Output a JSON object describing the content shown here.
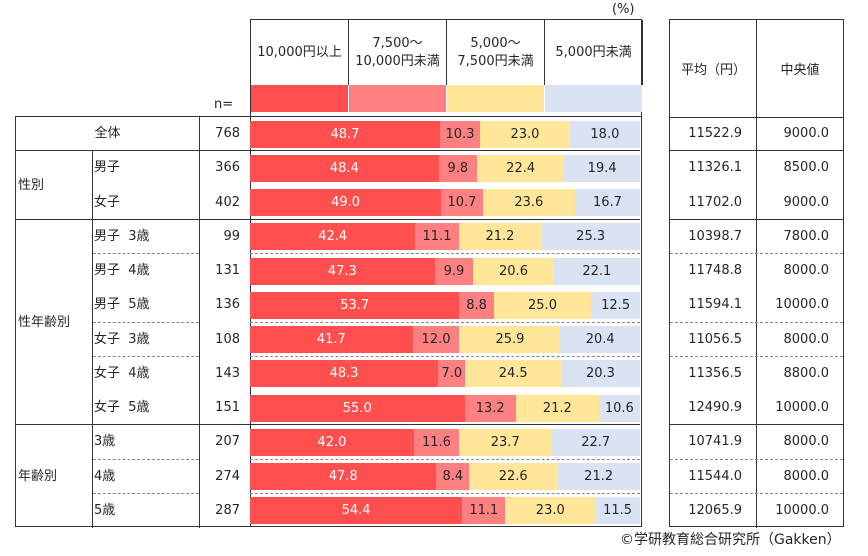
{
  "unit_label": "(%)",
  "n_label": "n=",
  "legend": [
    {
      "label_lines": [
        "10,000円以上"
      ],
      "color": "#FF4F4F"
    },
    {
      "label_lines": [
        "7,500～",
        "10,000円未満"
      ],
      "color": "#FF8080"
    },
    {
      "label_lines": [
        "5,000～",
        "7,500円未満"
      ],
      "color": "#FFE699"
    },
    {
      "label_lines": [
        "5,000円未満"
      ],
      "color": "#DAE3F3"
    }
  ],
  "right_table": {
    "headers": [
      "平均（円）",
      "中央値"
    ]
  },
  "groups": [
    {
      "label": "全体",
      "rows": [
        0
      ]
    },
    {
      "label": "性別",
      "rows": [
        1,
        2
      ]
    },
    {
      "label": "性年齢別",
      "rows": [
        3,
        4,
        5,
        6,
        7,
        8
      ]
    },
    {
      "label": "年齢別",
      "rows": [
        9,
        10,
        11
      ]
    }
  ],
  "chart_data": {
    "type": "bar",
    "orientation": "horizontal-stacked-100",
    "title": "",
    "xlabel": "",
    "ylabel": "",
    "unit": "%",
    "xlim": [
      0,
      100
    ],
    "categories": [
      "全体",
      "男子",
      "女子",
      "男子 3歳",
      "男子 4歳",
      "男子 5歳",
      "女子 3歳",
      "女子 4歳",
      "女子 5歳",
      "3歳",
      "4歳",
      "5歳"
    ],
    "n": [
      768,
      366,
      402,
      99,
      131,
      136,
      108,
      143,
      151,
      207,
      274,
      287
    ],
    "series": [
      {
        "name": "10,000円以上",
        "color": "#FF4F4F",
        "values": [
          48.7,
          48.4,
          49.0,
          42.4,
          47.3,
          53.7,
          41.7,
          48.3,
          55.0,
          42.0,
          47.8,
          54.4
        ]
      },
      {
        "name": "7,500～10,000円未満",
        "color": "#FF8080",
        "values": [
          10.3,
          9.8,
          10.7,
          11.1,
          9.9,
          8.8,
          12.0,
          7.0,
          13.2,
          11.6,
          8.4,
          11.1
        ]
      },
      {
        "name": "5,000～7,500円未満",
        "color": "#FFE699",
        "values": [
          23.0,
          22.4,
          23.6,
          21.2,
          20.6,
          25.0,
          25.9,
          24.5,
          21.2,
          23.7,
          22.6,
          23.0
        ]
      },
      {
        "name": "5,000円未満",
        "color": "#DAE3F3",
        "values": [
          18.0,
          19.4,
          16.7,
          25.3,
          22.1,
          12.5,
          20.4,
          20.3,
          10.6,
          22.7,
          21.2,
          11.5
        ]
      }
    ],
    "mean_yen": [
      "11522.9",
      "11326.1",
      "11702.0",
      "10398.7",
      "11748.8",
      "11594.1",
      "11056.5",
      "11356.5",
      "12490.9",
      "10741.9",
      "11544.0",
      "12065.9"
    ],
    "median_yen": [
      "9000.0",
      "8500.0",
      "9000.0",
      "7800.0",
      "8000.0",
      "10000.0",
      "8000.0",
      "8800.0",
      "10000.0",
      "8000.0",
      "8000.0",
      "10000.0"
    ],
    "legend_position": "top"
  },
  "copyright": "©学研教育総合研究所（Gakken）"
}
